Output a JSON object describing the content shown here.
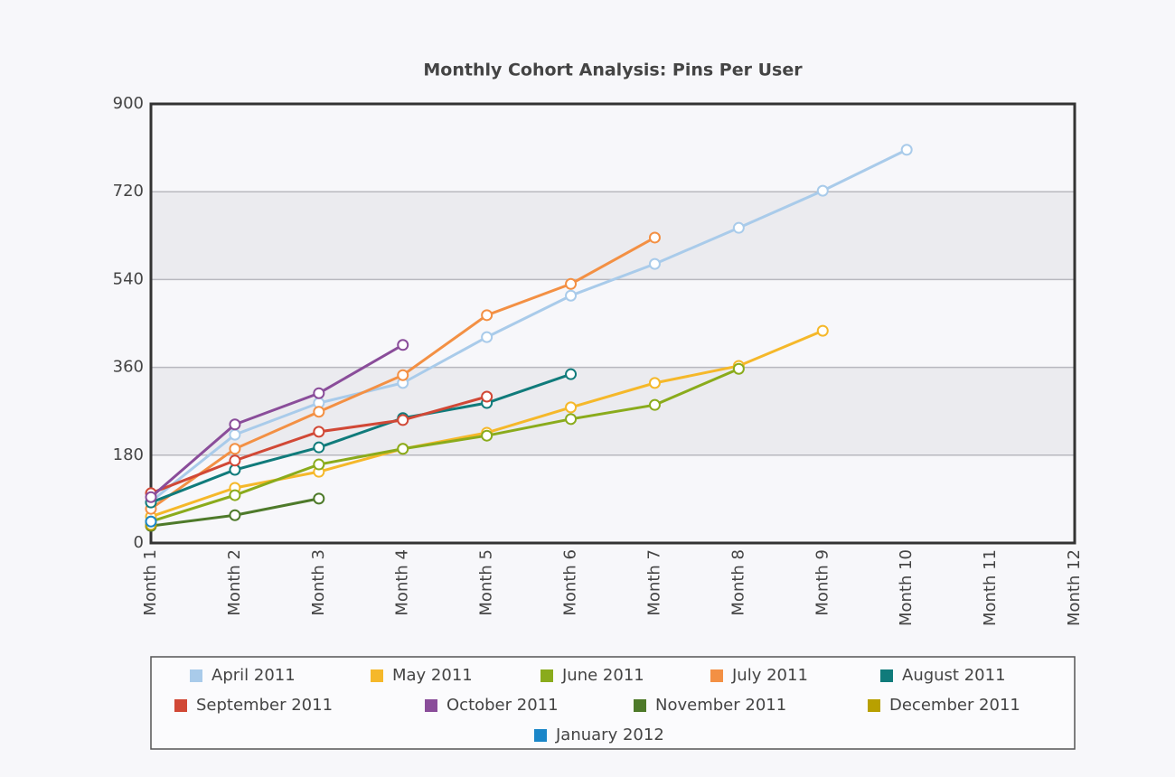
{
  "chart_data": {
    "type": "line",
    "title": "Monthly Cohort Analysis: Pins Per User",
    "categories": [
      "Month 1",
      "Month 2",
      "Month 3",
      "Month 4",
      "Month 5",
      "Month 6",
      "Month 7",
      "Month 8",
      "Month 9",
      "Month 10",
      "Month 11",
      "Month 12"
    ],
    "ylim": [
      0,
      900
    ],
    "yticks": [
      0,
      180,
      360,
      540,
      720,
      900
    ],
    "grid": true,
    "alternate_bands": true,
    "legend": "bottom",
    "series": [
      {
        "name": "April 2011",
        "color": "#a9cbea",
        "values": [
          85,
          222,
          287,
          328,
          422,
          507,
          572,
          646,
          722,
          806,
          null,
          null
        ]
      },
      {
        "name": "May 2011",
        "color": "#f5b82a",
        "values": [
          54,
          113,
          146,
          193,
          226,
          278,
          328,
          363,
          435,
          null,
          null,
          null
        ]
      },
      {
        "name": "June 2011",
        "color": "#8aab1c",
        "values": [
          44,
          98,
          161,
          193,
          220,
          254,
          283,
          357,
          null,
          null,
          null,
          null
        ]
      },
      {
        "name": "July 2011",
        "color": "#f39044",
        "values": [
          70,
          193,
          269,
          344,
          467,
          531,
          626,
          null,
          null,
          null,
          null,
          null
        ]
      },
      {
        "name": "August 2011",
        "color": "#107b7b",
        "values": [
          83,
          150,
          196,
          256,
          287,
          346,
          null,
          null,
          null,
          null,
          null,
          null
        ]
      },
      {
        "name": "September 2011",
        "color": "#d14836",
        "values": [
          102,
          169,
          228,
          252,
          300,
          null,
          null,
          null,
          null,
          null,
          null,
          null
        ]
      },
      {
        "name": "October 2011",
        "color": "#8a4d9a",
        "values": [
          94,
          243,
          307,
          406,
          null,
          null,
          null,
          null,
          null,
          null,
          null,
          null
        ]
      },
      {
        "name": "November 2011",
        "color": "#4e7a2a",
        "values": [
          35,
          57,
          91,
          null,
          null,
          null,
          null,
          null,
          null,
          null,
          null,
          null
        ]
      },
      {
        "name": "December 2011",
        "color": "#b8a000",
        "values": [
          37,
          null,
          null,
          null,
          null,
          null,
          null,
          null,
          null,
          null,
          null,
          null
        ]
      },
      {
        "name": "January 2012",
        "color": "#1a86c8",
        "values": [
          44,
          null,
          null,
          null,
          null,
          null,
          null,
          null,
          null,
          null,
          null,
          null
        ]
      }
    ]
  }
}
